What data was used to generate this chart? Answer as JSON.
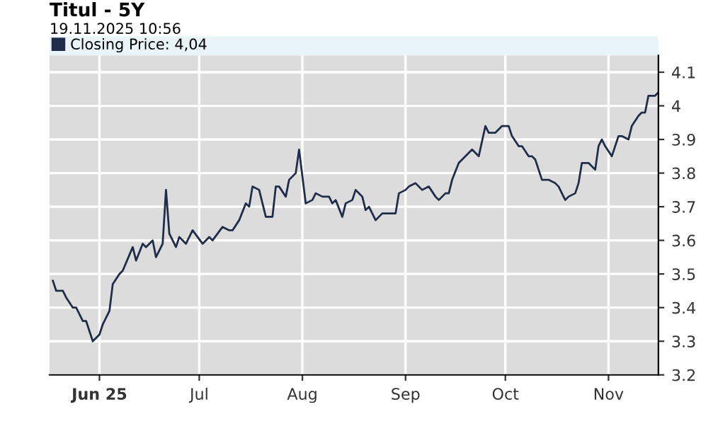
{
  "chart_data": {
    "type": "line",
    "title": "Titul - 5Y",
    "subtitle": "19.11.2025 10:56",
    "x": [
      "2025-05-18",
      "2025-05-19",
      "2025-05-21",
      "2025-05-22",
      "2025-05-24",
      "2025-05-25",
      "2025-05-27",
      "2025-05-28",
      "2025-05-30",
      "2025-06-01",
      "2025-06-02",
      "2025-06-04",
      "2025-06-05",
      "2025-06-07",
      "2025-06-08",
      "2025-06-11",
      "2025-06-12",
      "2025-06-14",
      "2025-06-15",
      "2025-06-17",
      "2025-06-18",
      "2025-06-20",
      "2025-06-21",
      "2025-06-22",
      "2025-06-24",
      "2025-06-25",
      "2025-06-27",
      "2025-06-29",
      "2025-07-02",
      "2025-07-04",
      "2025-07-05",
      "2025-07-08",
      "2025-07-10",
      "2025-07-11",
      "2025-07-13",
      "2025-07-15",
      "2025-07-16",
      "2025-07-17",
      "2025-07-19",
      "2025-07-21",
      "2025-07-23",
      "2025-07-24",
      "2025-07-25",
      "2025-07-27",
      "2025-07-28",
      "2025-07-30",
      "2025-07-31",
      "2025-08-02",
      "2025-08-04",
      "2025-08-05",
      "2025-08-07",
      "2025-08-09",
      "2025-08-10",
      "2025-08-11",
      "2025-08-13",
      "2025-08-14",
      "2025-08-16",
      "2025-08-17",
      "2025-08-19",
      "2025-08-20",
      "2025-08-21",
      "2025-08-23",
      "2025-08-25",
      "2025-08-27",
      "2025-08-29",
      "2025-08-30",
      "2025-09-01",
      "2025-09-02",
      "2025-09-04",
      "2025-09-06",
      "2025-09-08",
      "2025-09-10",
      "2025-09-11",
      "2025-09-13",
      "2025-09-14",
      "2025-09-15",
      "2025-09-17",
      "2025-09-19",
      "2025-09-21",
      "2025-09-23",
      "2025-09-25",
      "2025-09-26",
      "2025-09-28",
      "2025-09-30",
      "2025-10-02",
      "2025-10-03",
      "2025-10-05",
      "2025-10-06",
      "2025-10-08",
      "2025-10-09",
      "2025-10-10",
      "2025-10-12",
      "2025-10-14",
      "2025-10-16",
      "2025-10-17",
      "2025-10-19",
      "2025-10-20",
      "2025-10-22",
      "2025-10-23",
      "2025-10-24",
      "2025-10-26",
      "2025-10-28",
      "2025-10-29",
      "2025-10-30",
      "2025-10-31",
      "2025-11-02",
      "2025-11-04",
      "2025-11-05",
      "2025-11-07",
      "2025-11-08",
      "2025-11-10",
      "2025-11-11",
      "2025-11-12",
      "2025-11-13",
      "2025-11-15",
      "2025-11-16"
    ],
    "series": [
      {
        "name": "Closing Price: 4,04",
        "color": "#1f2d4a",
        "values": [
          3.48,
          3.45,
          3.45,
          3.43,
          3.4,
          3.4,
          3.36,
          3.36,
          3.3,
          3.32,
          3.35,
          3.39,
          3.47,
          3.5,
          3.51,
          3.58,
          3.54,
          3.59,
          3.58,
          3.6,
          3.55,
          3.59,
          3.75,
          3.62,
          3.58,
          3.61,
          3.59,
          3.63,
          3.59,
          3.61,
          3.6,
          3.64,
          3.63,
          3.63,
          3.66,
          3.71,
          3.7,
          3.76,
          3.75,
          3.67,
          3.67,
          3.76,
          3.76,
          3.73,
          3.78,
          3.8,
          3.87,
          3.71,
          3.72,
          3.74,
          3.73,
          3.73,
          3.71,
          3.72,
          3.67,
          3.71,
          3.72,
          3.75,
          3.73,
          3.69,
          3.7,
          3.66,
          3.68,
          3.68,
          3.68,
          3.74,
          3.75,
          3.76,
          3.77,
          3.75,
          3.76,
          3.73,
          3.72,
          3.74,
          3.74,
          3.78,
          3.83,
          3.85,
          3.87,
          3.85,
          3.94,
          3.92,
          3.92,
          3.94,
          3.94,
          3.91,
          3.88,
          3.88,
          3.85,
          3.85,
          3.84,
          3.78,
          3.78,
          3.77,
          3.76,
          3.72,
          3.73,
          3.74,
          3.77,
          3.83,
          3.83,
          3.81,
          3.88,
          3.9,
          3.88,
          3.85,
          3.91,
          3.91,
          3.9,
          3.94,
          3.97,
          3.98,
          3.98,
          4.03,
          4.03,
          4.04
        ]
      }
    ],
    "xlim": [
      "2025-05-17",
      "2025-11-16"
    ],
    "xticks": [
      {
        "value": "2025-06-01",
        "label": "Jun 25"
      },
      {
        "value": "2025-07-01",
        "label": "Jul"
      },
      {
        "value": "2025-08-01",
        "label": "Aug"
      },
      {
        "value": "2025-09-01",
        "label": "Sep"
      },
      {
        "value": "2025-10-01",
        "label": "Oct"
      },
      {
        "value": "2025-11-01",
        "label": "Nov"
      }
    ],
    "ylim": [
      3.2,
      4.15
    ],
    "yticks": [
      3.2,
      3.3,
      3.4,
      3.5,
      3.6,
      3.7,
      3.8,
      3.9,
      4,
      4.1
    ],
    "grid": true,
    "legend": "top left",
    "marker": "none",
    "line_style": "solid"
  }
}
